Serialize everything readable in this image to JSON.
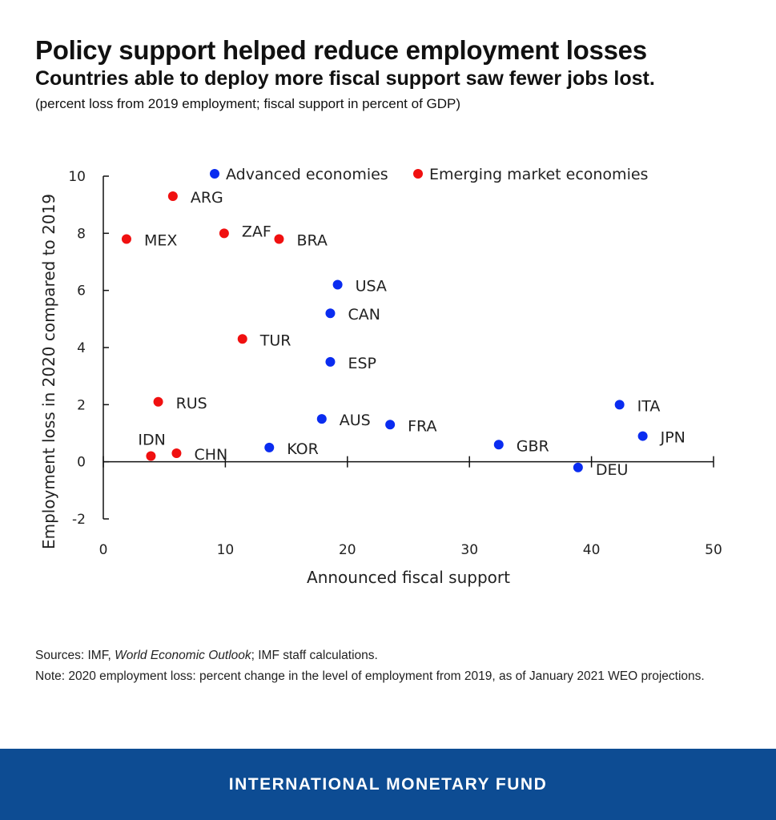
{
  "header": {
    "title": "Policy support helped reduce employment losses",
    "subtitle": "Countries able to deploy more fiscal support saw fewer jobs lost.",
    "units": "(percent loss from 2019 employment; fiscal support in percent of GDP)"
  },
  "chart_data": {
    "type": "scatter",
    "xlabel": "Announced fiscal support",
    "ylabel": "Employment loss in 2020 compared to 2019",
    "xlim": [
      0,
      50
    ],
    "ylim": [
      -2,
      10
    ],
    "xticks": [
      0,
      10,
      20,
      30,
      40,
      50
    ],
    "yticks": [
      -2,
      0,
      2,
      4,
      6,
      8,
      10
    ],
    "grid": false,
    "legend_position": "top",
    "series": [
      {
        "name": "Advanced economies",
        "color": "#0a2cf0",
        "points": [
          {
            "label": "USA",
            "x": 19.2,
            "y": 6.2
          },
          {
            "label": "CAN",
            "x": 18.6,
            "y": 5.2
          },
          {
            "label": "ESP",
            "x": 18.6,
            "y": 3.5
          },
          {
            "label": "AUS",
            "x": 17.9,
            "y": 1.5
          },
          {
            "label": "FRA",
            "x": 23.5,
            "y": 1.3
          },
          {
            "label": "KOR",
            "x": 13.6,
            "y": 0.5
          },
          {
            "label": "GBR",
            "x": 32.4,
            "y": 0.6
          },
          {
            "label": "DEU",
            "x": 38.9,
            "y": -0.2
          },
          {
            "label": "ITA",
            "x": 42.3,
            "y": 2.0
          },
          {
            "label": "JPN",
            "x": 44.2,
            "y": 0.9
          }
        ]
      },
      {
        "name": "Emerging market economies",
        "color": "#f01010",
        "points": [
          {
            "label": "ARG",
            "x": 5.7,
            "y": 9.3
          },
          {
            "label": "MEX",
            "x": 1.9,
            "y": 7.8
          },
          {
            "label": "ZAF",
            "x": 9.9,
            "y": 8.0
          },
          {
            "label": "BRA",
            "x": 14.4,
            "y": 7.8
          },
          {
            "label": "TUR",
            "x": 11.4,
            "y": 4.3
          },
          {
            "label": "RUS",
            "x": 4.5,
            "y": 2.1
          },
          {
            "label": "IDN",
            "x": 3.9,
            "y": 0.2
          },
          {
            "label": "CHN",
            "x": 6.0,
            "y": 0.3
          }
        ]
      }
    ]
  },
  "footnotes": {
    "sources_prefix": "Sources: IMF, ",
    "sources_publication": "World Economic Outlook",
    "sources_suffix": "; IMF staff calculations.",
    "note": "Note: 2020 employment loss: percent change in the level of employment from 2019, as of January 2021 WEO projections."
  },
  "footer": {
    "organization": "INTERNATIONAL MONETARY FUND",
    "background_color": "#0d4c93"
  }
}
